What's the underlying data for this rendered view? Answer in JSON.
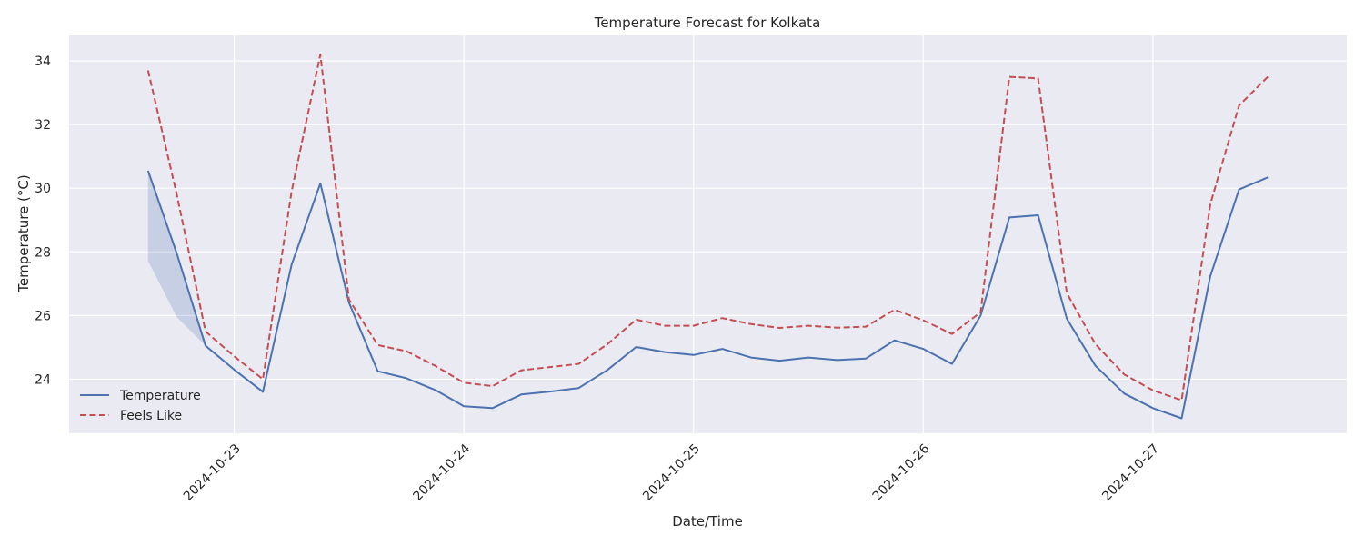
{
  "chart_data": {
    "type": "line",
    "title": "Temperature Forecast for Kolkata",
    "xlabel": "Date/Time",
    "ylabel": "Temperature (°C)",
    "x_ticks": [
      "2024-10-23",
      "2024-10-24",
      "2024-10-25",
      "2024-10-26",
      "2024-10-27"
    ],
    "y_ticks": [
      24,
      26,
      28,
      30,
      32,
      34
    ],
    "ylim": [
      22.3,
      34.8
    ],
    "xlim": [
      "2024-10-22 06:45",
      "2024-10-27 20:15"
    ],
    "x": [
      "2024-10-22 15:00",
      "2024-10-22 18:00",
      "2024-10-22 21:00",
      "2024-10-23 00:00",
      "2024-10-23 03:00",
      "2024-10-23 06:00",
      "2024-10-23 09:00",
      "2024-10-23 12:00",
      "2024-10-23 15:00",
      "2024-10-23 18:00",
      "2024-10-23 21:00",
      "2024-10-24 00:00",
      "2024-10-24 03:00",
      "2024-10-24 06:00",
      "2024-10-24 09:00",
      "2024-10-24 12:00",
      "2024-10-24 15:00",
      "2024-10-24 18:00",
      "2024-10-24 21:00",
      "2024-10-25 00:00",
      "2024-10-25 03:00",
      "2024-10-25 06:00",
      "2024-10-25 09:00",
      "2024-10-25 12:00",
      "2024-10-25 15:00",
      "2024-10-25 18:00",
      "2024-10-25 21:00",
      "2024-10-26 00:00",
      "2024-10-26 03:00",
      "2024-10-26 06:00",
      "2024-10-26 09:00",
      "2024-10-26 12:00",
      "2024-10-26 15:00",
      "2024-10-26 18:00",
      "2024-10-26 21:00",
      "2024-10-27 00:00",
      "2024-10-27 03:00",
      "2024-10-27 06:00",
      "2024-10-27 09:00",
      "2024-10-27 12:00"
    ],
    "series": [
      {
        "name": "Temperature",
        "style": "solid",
        "color": "#4c72b0",
        "values": [
          30.55,
          27.95,
          25.05,
          24.3,
          23.6,
          27.6,
          30.15,
          26.4,
          24.25,
          24.03,
          23.66,
          23.15,
          23.09,
          23.52,
          23.61,
          23.72,
          24.29,
          25.01,
          24.85,
          24.76,
          24.95,
          24.68,
          24.58,
          24.68,
          24.6,
          24.65,
          25.22,
          24.95,
          24.48,
          26.0,
          29.08,
          29.15,
          25.9,
          24.42,
          23.55,
          23.09,
          22.77,
          27.24,
          29.96,
          30.34
        ]
      },
      {
        "name": "Feels Like",
        "style": "dashed",
        "color": "#c44e52",
        "values": [
          33.7,
          29.8,
          25.5,
          24.72,
          24.0,
          29.9,
          34.2,
          26.5,
          25.07,
          24.88,
          24.42,
          23.89,
          23.78,
          24.28,
          24.38,
          24.48,
          25.1,
          25.87,
          25.68,
          25.68,
          25.92,
          25.73,
          25.61,
          25.68,
          25.62,
          25.65,
          26.18,
          25.85,
          25.42,
          26.1,
          33.5,
          33.45,
          26.7,
          25.1,
          24.15,
          23.65,
          23.34,
          29.5,
          32.6,
          33.5
        ]
      }
    ],
    "band": {
      "x": [
        "2024-10-22 15:00",
        "2024-10-22 18:00",
        "2024-10-22 21:00"
      ],
      "upper": [
        30.55,
        27.95,
        25.05
      ],
      "lower": [
        27.72,
        25.95,
        25.05
      ],
      "color": "#4c72b0"
    },
    "grid": true,
    "legend_position": "lower-left",
    "colors": {
      "plot_background": "#eaeaf2",
      "grid": "#ffffff",
      "text": "#262626"
    }
  }
}
